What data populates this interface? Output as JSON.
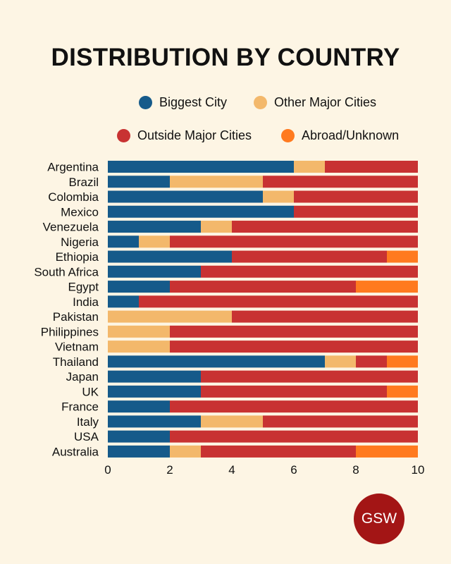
{
  "chart_data": {
    "type": "bar",
    "orientation": "horizontal",
    "stacked": true,
    "title": "DISTRIBUTION BY COUNTRY",
    "categories": [
      "Argentina",
      "Brazil",
      "Colombia",
      "Mexico",
      "Venezuela",
      "Nigeria",
      "Ethiopia",
      "South Africa",
      "Egypt",
      "India",
      "Pakistan",
      "Philippines",
      "Vietnam",
      "Thailand",
      "Japan",
      "UK",
      "France",
      "Italy",
      "USA",
      "Australia"
    ],
    "series": [
      {
        "name": "Biggest City",
        "color": "#155a8a",
        "values": [
          6,
          2,
          5,
          6,
          3,
          1,
          4,
          3,
          2,
          1,
          0,
          0,
          0,
          7,
          3,
          3,
          2,
          3,
          2,
          2
        ]
      },
      {
        "name": "Other Major Cities",
        "color": "#f3b86b",
        "values": [
          1,
          3,
          1,
          0,
          1,
          1,
          0,
          0,
          0,
          0,
          4,
          2,
          2,
          1,
          0,
          0,
          0,
          2,
          0,
          1
        ]
      },
      {
        "name": "Outside Major Cities",
        "color": "#c83232",
        "values": [
          3,
          5,
          4,
          4,
          6,
          8,
          5,
          7,
          6,
          9,
          6,
          8,
          8,
          1,
          7,
          6,
          8,
          5,
          8,
          5
        ]
      },
      {
        "name": "Abroad/Unknown",
        "color": "#ff7a1f",
        "values": [
          0,
          0,
          0,
          0,
          0,
          0,
          1,
          0,
          2,
          0,
          0,
          0,
          0,
          1,
          0,
          1,
          0,
          0,
          0,
          2
        ]
      }
    ],
    "xlim": [
      0,
      10
    ],
    "xticks": [
      "0",
      "2",
      "4",
      "6",
      "8",
      "10"
    ],
    "legend": "top",
    "grid": false
  },
  "logo": "GSW"
}
